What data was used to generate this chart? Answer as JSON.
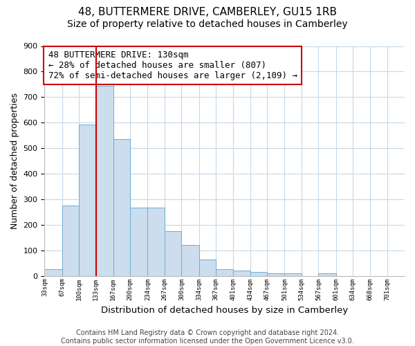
{
  "title": "48, BUTTERMERE DRIVE, CAMBERLEY, GU15 1RB",
  "subtitle": "Size of property relative to detached houses in Camberley",
  "xlabel": "Distribution of detached houses by size in Camberley",
  "ylabel": "Number of detached properties",
  "bar_edges": [
    33,
    67,
    100,
    133,
    167,
    200,
    234,
    267,
    300,
    334,
    367,
    401,
    434,
    467,
    501,
    534,
    567,
    601,
    634,
    668,
    701,
    735
  ],
  "bar_heights": [
    27,
    275,
    593,
    745,
    536,
    268,
    268,
    175,
    120,
    65,
    25,
    20,
    15,
    10,
    10,
    0,
    10,
    0,
    0,
    0,
    0
  ],
  "bar_color": "#ccdded",
  "bar_edge_color": "#6aaed6",
  "vline_x": 133,
  "vline_color": "#cc0000",
  "annotation_line1": "48 BUTTERMERE DRIVE: 130sqm",
  "annotation_line2": "← 28% of detached houses are smaller (807)",
  "annotation_line3": "72% of semi-detached houses are larger (2,109) →",
  "annotation_box_color": "#ffffff",
  "annotation_box_edge": "#cc0000",
  "ylim": [
    0,
    900
  ],
  "yticks": [
    0,
    100,
    200,
    300,
    400,
    500,
    600,
    700,
    800,
    900
  ],
  "tick_labels": [
    "33sqm",
    "67sqm",
    "100sqm",
    "133sqm",
    "167sqm",
    "200sqm",
    "234sqm",
    "267sqm",
    "300sqm",
    "334sqm",
    "367sqm",
    "401sqm",
    "434sqm",
    "467sqm",
    "501sqm",
    "534sqm",
    "567sqm",
    "601sqm",
    "634sqm",
    "668sqm",
    "701sqm"
  ],
  "footnote": "Contains HM Land Registry data © Crown copyright and database right 2024.\nContains public sector information licensed under the Open Government Licence v3.0.",
  "background_color": "#ffffff",
  "grid_color": "#c5d8e8",
  "title_fontsize": 11,
  "subtitle_fontsize": 10,
  "xlabel_fontsize": 9.5,
  "ylabel_fontsize": 9,
  "footnote_fontsize": 7,
  "annotation_fontsize": 9
}
